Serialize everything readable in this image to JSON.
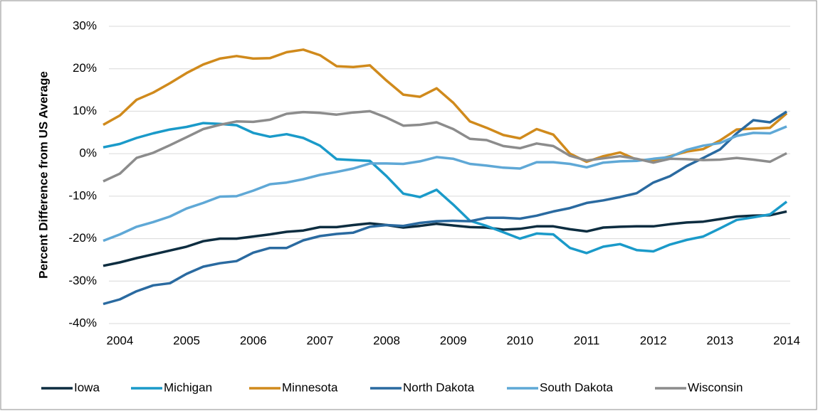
{
  "chart_data": {
    "type": "line",
    "y_label": "Percent Difference from US Average",
    "categories": [
      null,
      "2004",
      null,
      null,
      null,
      "2005",
      null,
      null,
      null,
      "2006",
      null,
      null,
      null,
      "2007",
      null,
      null,
      null,
      "2008",
      null,
      null,
      null,
      "2009",
      null,
      null,
      null,
      "2010",
      null,
      null,
      null,
      "2011",
      null,
      null,
      null,
      "2012",
      null,
      null,
      null,
      "2013",
      null,
      null,
      null,
      "2014"
    ],
    "ylim": [
      -40,
      30
    ],
    "yticks": [
      {
        "value": -40,
        "label": "-40%"
      },
      {
        "value": -30,
        "label": "-30%"
      },
      {
        "value": -20,
        "label": "-20%"
      },
      {
        "value": -10,
        "label": "-10%"
      },
      {
        "value": 0,
        "label": "0%"
      },
      {
        "value": 10,
        "label": "10%"
      },
      {
        "value": 20,
        "label": "20%"
      },
      {
        "value": 30,
        "label": "30%"
      }
    ],
    "grid": true,
    "legend": "bottom",
    "series": [
      {
        "name": "Iowa",
        "color": "#0d2d40",
        "values": [
          -26.4,
          -25.6,
          -24.6,
          -23.7,
          -22.8,
          -21.9,
          -20.6,
          -20,
          -20,
          -19.5,
          -19,
          -18.4,
          -18.1,
          -17.3,
          -17.3,
          -16.8,
          -16.4,
          -16.8,
          -17.4,
          -17,
          -16.5,
          -16.9,
          -17.3,
          -17.4,
          -17.9,
          -17.7,
          -17.1,
          -17.1,
          -17.8,
          -18.3,
          -17.4,
          -17.2,
          -17.1,
          -17.1,
          -16.6,
          -16.2,
          -16,
          -15.4,
          -14.8,
          -14.6,
          -14.5,
          -13.6
        ]
      },
      {
        "name": "Michigan",
        "color": "#1a9ac9",
        "values": [
          1.5,
          2.3,
          3.7,
          4.8,
          5.7,
          6.3,
          7.2,
          7,
          6.7,
          4.9,
          4,
          4.6,
          3.7,
          1.9,
          -1.3,
          -1.5,
          -1.7,
          -5.3,
          -9.4,
          -10.2,
          -8.5,
          -12,
          -15.8,
          -17,
          -18.5,
          -20,
          -18.8,
          -19,
          -22.2,
          -23.4,
          -21.9,
          -21.3,
          -22.7,
          -23,
          -21.4,
          -20.3,
          -19.5,
          -17.6,
          -15.6,
          -15,
          -14.3,
          -11.3
        ]
      },
      {
        "name": "Minnesota",
        "color": "#d08a1c",
        "values": [
          6.8,
          9,
          12.7,
          14.4,
          16.6,
          19,
          21,
          22.4,
          23,
          22.4,
          22.5,
          23.9,
          24.5,
          23.2,
          20.6,
          20.4,
          20.8,
          17.2,
          13.9,
          13.4,
          15.4,
          12,
          7.6,
          6.1,
          4.4,
          3.6,
          5.8,
          4.5,
          0,
          -1.9,
          -0.6,
          0.3,
          -1.4,
          -1.6,
          -0.6,
          0.5,
          1.1,
          3.1,
          5.7,
          5.9,
          6.1,
          9.5
        ]
      },
      {
        "name": "North Dakota",
        "color": "#2a6aa0",
        "values": [
          -35.4,
          -34.3,
          -32.4,
          -31,
          -30.5,
          -28.3,
          -26.6,
          -25.8,
          -25.3,
          -23.3,
          -22.2,
          -22.2,
          -20.4,
          -19.4,
          -18.9,
          -18.6,
          -17.2,
          -16.8,
          -17,
          -16.3,
          -15.9,
          -15.8,
          -15.9,
          -15.1,
          -15.1,
          -15.3,
          -14.6,
          -13.6,
          -12.8,
          -11.6,
          -11,
          -10.2,
          -9.3,
          -6.8,
          -5.3,
          -2.9,
          -1,
          1,
          4.8,
          7.9,
          7.4,
          9.9
        ]
      },
      {
        "name": "South Dakota",
        "color": "#5fa8d6",
        "values": [
          -20.5,
          -19,
          -17.2,
          -16.1,
          -14.8,
          -12.9,
          -11.6,
          -10.1,
          -10,
          -8.7,
          -7.2,
          -6.8,
          -6,
          -5,
          -4.3,
          -3.5,
          -2.3,
          -2.3,
          -2.4,
          -1.8,
          -0.8,
          -1.2,
          -2.4,
          -2.8,
          -3.3,
          -3.5,
          -2,
          -2,
          -2.4,
          -3.2,
          -2.1,
          -1.8,
          -1.7,
          -1.2,
          -0.8,
          0.9,
          1.9,
          2.5,
          4.2,
          4.9,
          4.8,
          6.4
        ]
      },
      {
        "name": "Wisconsin",
        "color": "#8c8c8c",
        "values": [
          -6.5,
          -4.7,
          -1,
          0.2,
          2,
          3.9,
          5.8,
          6.8,
          7.6,
          7.5,
          8,
          9.4,
          9.8,
          9.6,
          9.2,
          9.7,
          10,
          8.5,
          6.6,
          6.8,
          7.4,
          5.8,
          3.5,
          3.2,
          1.8,
          1.3,
          2.4,
          1.8,
          -0.5,
          -1.6,
          -1.1,
          -0.6,
          -1.2,
          -2.1,
          -1.2,
          -1.3,
          -1.5,
          -1.4,
          -1,
          -1.4,
          -1.9,
          0.1
        ]
      }
    ]
  }
}
